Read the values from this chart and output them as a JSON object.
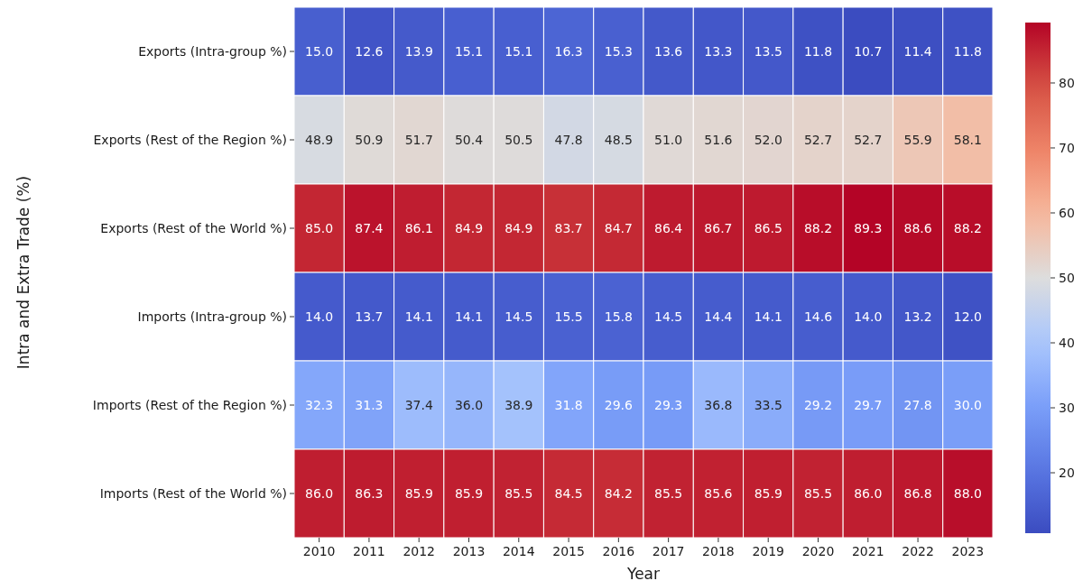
{
  "chart_data": {
    "type": "heatmap",
    "xlabel": "Year",
    "ylabel": "Intra and Extra Trade (%)",
    "categories": [
      "2010",
      "2011",
      "2012",
      "2013",
      "2014",
      "2015",
      "2016",
      "2017",
      "2018",
      "2019",
      "2020",
      "2021",
      "2022",
      "2023"
    ],
    "y_categories": [
      "Exports (Intra-group %)",
      "Exports (Rest of the Region %)",
      "Exports (Rest of the World %)",
      "Imports (Intra-group %)",
      "Imports (Rest of the Region %)",
      "Imports (Rest of the World %)"
    ],
    "cells": [
      [
        15.0,
        12.6,
        13.9,
        15.1,
        15.1,
        16.3,
        15.3,
        13.6,
        13.3,
        13.5,
        11.8,
        10.7,
        11.4,
        11.8
      ],
      [
        48.9,
        50.9,
        51.7,
        50.4,
        50.5,
        47.8,
        48.5,
        51.0,
        51.6,
        52.0,
        52.7,
        52.7,
        55.9,
        58.1
      ],
      [
        85.0,
        87.4,
        86.1,
        84.9,
        84.9,
        83.7,
        84.7,
        86.4,
        86.7,
        86.5,
        88.2,
        89.3,
        88.6,
        88.2
      ],
      [
        14.0,
        13.7,
        14.1,
        14.1,
        14.5,
        15.5,
        15.8,
        14.5,
        14.4,
        14.1,
        14.6,
        14.0,
        13.2,
        12.0
      ],
      [
        32.3,
        31.3,
        37.4,
        36.0,
        38.9,
        31.8,
        29.6,
        29.3,
        36.8,
        33.5,
        29.2,
        29.7,
        27.8,
        30.0
      ],
      [
        86.0,
        86.3,
        85.9,
        85.9,
        85.5,
        84.5,
        84.2,
        85.5,
        85.6,
        85.9,
        85.5,
        86.0,
        86.8,
        88.0
      ]
    ],
    "cell_labels": [
      [
        "15.0",
        "12.6",
        "13.9",
        "15.1",
        "15.1",
        "16.3",
        "15.3",
        "13.6",
        "13.3",
        "13.5",
        "11.8",
        "10.7",
        "11.4",
        "11.8"
      ],
      [
        "48.9",
        "50.9",
        "51.7",
        "50.4",
        "50.5",
        "47.8",
        "48.5",
        "51.0",
        "51.6",
        "52.0",
        "52.7",
        "52.7",
        "55.9",
        "58.1"
      ],
      [
        "85.0",
        "87.4",
        "86.1",
        "84.9",
        "84.9",
        "83.7",
        "84.7",
        "86.4",
        "86.7",
        "86.5",
        "88.2",
        "89.3",
        "88.6",
        "88.2"
      ],
      [
        "14.0",
        "13.7",
        "14.1",
        "14.1",
        "14.5",
        "15.5",
        "15.8",
        "14.5",
        "14.4",
        "14.1",
        "14.6",
        "14.0",
        "13.2",
        "12.0"
      ],
      [
        "32.3",
        "31.3",
        "37.4",
        "36.0",
        "38.9",
        "31.8",
        "29.6",
        "29.3",
        "36.8",
        "33.5",
        "29.2",
        "29.7",
        "27.8",
        "30.0"
      ],
      [
        "86.0",
        "86.3",
        "85.9",
        "85.9",
        "85.5",
        "84.5",
        "84.2",
        "85.5",
        "85.6",
        "85.9",
        "85.5",
        "86.0",
        "86.8",
        "88.0"
      ]
    ],
    "clim": [
      10.7,
      89.3
    ],
    "cticks": [
      20,
      30,
      40,
      50,
      60,
      70,
      80
    ]
  }
}
